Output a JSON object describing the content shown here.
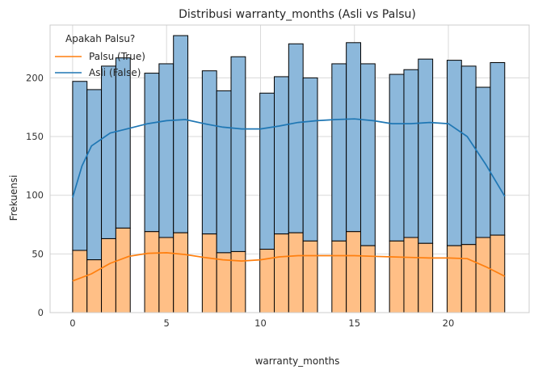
{
  "chart_data": {
    "type": "bar",
    "title": "Distribusi warranty_months (Asli vs Palsu)",
    "xlabel": "warranty_months",
    "ylabel": "Frekuensi",
    "xlim": [
      -1.2,
      24.3
    ],
    "ylim": [
      0,
      245
    ],
    "xticks": [
      0,
      5,
      10,
      15,
      20
    ],
    "yticks": [
      0,
      50,
      100,
      150,
      200
    ],
    "grid": true,
    "stacked": true,
    "bin_width": 0.7667,
    "bin_starts": [
      0,
      0.767,
      1.533,
      2.3,
      3.833,
      4.6,
      5.367,
      6.9,
      7.667,
      8.433,
      9.967,
      10.733,
      11.5,
      12.267,
      13.8,
      14.567,
      15.333,
      16.867,
      17.633,
      18.4,
      19.933,
      20.7,
      21.467,
      22.233
    ],
    "legend": {
      "title": "Apakah Palsu?",
      "position": "top-left",
      "entries": [
        {
          "label": "Palsu (True)",
          "color": "#ff7f0e"
        },
        {
          "label": "Asli (False)",
          "color": "#1f77b4"
        }
      ]
    },
    "series": [
      {
        "name": "Palsu (True)",
        "color": "#ff7f0e",
        "fill": "#ffbf86",
        "values": [
          53,
          45,
          63,
          72,
          69,
          64,
          68,
          67,
          51,
          52,
          54,
          67,
          68,
          61,
          61,
          69,
          57,
          61,
          64,
          59,
          57,
          58,
          64,
          66
        ],
        "kde": [
          [
            0,
            27
          ],
          [
            1,
            33
          ],
          [
            2,
            42
          ],
          [
            3,
            48
          ],
          [
            4,
            50.5
          ],
          [
            5,
            51
          ],
          [
            6,
            49.5
          ],
          [
            7,
            47
          ],
          [
            8,
            45
          ],
          [
            9,
            44
          ],
          [
            10,
            45
          ],
          [
            11,
            47.5
          ],
          [
            12,
            48.5
          ],
          [
            13,
            48.5
          ],
          [
            14,
            48.5
          ],
          [
            15,
            48.5
          ],
          [
            16,
            48
          ],
          [
            17,
            47.5
          ],
          [
            18,
            47
          ],
          [
            19,
            46.5
          ],
          [
            20,
            46.5
          ],
          [
            21,
            46
          ],
          [
            22,
            39
          ],
          [
            23,
            31
          ]
        ]
      },
      {
        "name": "Asli (False)",
        "color": "#1f77b4",
        "fill": "#8cb8db",
        "totals": [
          197,
          190,
          210,
          217,
          204,
          212,
          236,
          206,
          189,
          218,
          187,
          201,
          229,
          200,
          212,
          230,
          212,
          203,
          207,
          216,
          215,
          210,
          192,
          213
        ],
        "kde": [
          [
            0,
            98
          ],
          [
            0.5,
            125
          ],
          [
            1,
            142
          ],
          [
            2,
            153
          ],
          [
            3,
            157
          ],
          [
            4,
            161
          ],
          [
            5,
            163.5
          ],
          [
            6,
            164.5
          ],
          [
            7,
            161
          ],
          [
            8,
            158
          ],
          [
            9,
            156.5
          ],
          [
            10,
            156.5
          ],
          [
            11,
            159
          ],
          [
            12,
            162
          ],
          [
            13,
            163.5
          ],
          [
            14,
            164.5
          ],
          [
            15,
            165
          ],
          [
            16,
            163.5
          ],
          [
            17,
            161
          ],
          [
            18,
            161
          ],
          [
            19,
            162
          ],
          [
            20,
            161
          ],
          [
            21,
            150
          ],
          [
            22,
            126
          ],
          [
            23,
            99
          ]
        ]
      }
    ]
  }
}
